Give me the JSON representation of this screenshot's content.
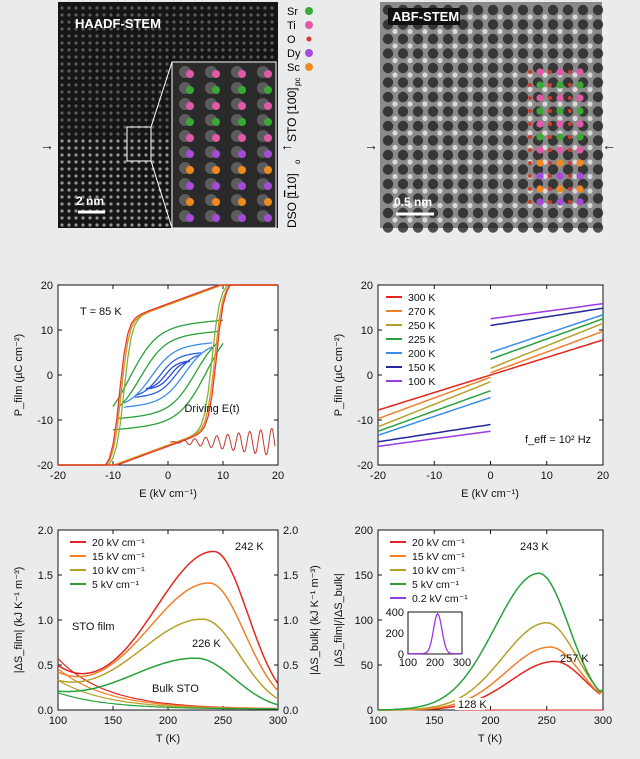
{
  "micrographs": {
    "left": {
      "title": "HAADF-STEM",
      "scalebar": "2 nm",
      "label_top": "STO [100]",
      "label_top_sub": "pc",
      "label_bottom": "DSO [",
      "label_bottom_bar": "1",
      "label_bottom_tail": "10]",
      "label_bottom_sub": "o"
    },
    "right": {
      "title": "ABF-STEM",
      "scalebar": "0.5 nm"
    },
    "legend": [
      {
        "name": "Sr",
        "color": "#3aaa35"
      },
      {
        "name": "Ti",
        "color": "#e05aa8"
      },
      {
        "name": "O",
        "color": "#d23b2b"
      },
      {
        "name": "Dy",
        "color": "#a64bd8"
      },
      {
        "name": "Sc",
        "color": "#f08a1e"
      }
    ]
  },
  "chart_data": [
    {
      "type": "line",
      "id": "hysteresis-85K",
      "xlabel": "E (kV cm⁻¹)",
      "ylabel": "P_film (µC cm⁻²)",
      "xlim": [
        -20,
        20
      ],
      "ylim": [
        -20,
        20
      ],
      "xticks": [
        "-20",
        "-10",
        "0",
        "10",
        "20"
      ],
      "yticks": [
        "-20",
        "-10",
        "0",
        "10",
        "20"
      ],
      "annotations": [
        "T = 85 K",
        "Driving E(t)"
      ],
      "loops": [
        {
          "emax": 4,
          "coercive": 0.5,
          "pmax": 3.5,
          "color": "#2b4ad6"
        },
        {
          "emax": 6,
          "coercive": 1.5,
          "pmax": 5.5,
          "color": "#2b5fe0"
        },
        {
          "emax": 8,
          "coercive": 3.0,
          "pmax": 8.0,
          "color": "#3a8ee8"
        },
        {
          "emax": 9,
          "coercive": 5.0,
          "pmax": 11,
          "color": "#2aa13a"
        },
        {
          "emax": 10,
          "coercive": 7.0,
          "pmax": 14,
          "color": "#2aa13a"
        },
        {
          "emax": 20,
          "coercive": 8.0,
          "pmax": 19.5,
          "color": "#7fb23a"
        },
        {
          "emax": 20,
          "coercive": 8.5,
          "pmax": 19.5,
          "color": "#e09020"
        },
        {
          "emax": 20,
          "coercive": 8.8,
          "pmax": 19.8,
          "color": "#e33b2b"
        }
      ]
    },
    {
      "type": "line",
      "id": "polarization-temperature",
      "xlabel": "E (kV cm⁻¹)",
      "ylabel": "P_film (µC cm⁻²)",
      "xlim": [
        -20,
        20
      ],
      "ylim": [
        -20,
        20
      ],
      "xticks": [
        "-20",
        "-10",
        "0",
        "10",
        "20"
      ],
      "yticks": [
        "-20",
        "-10",
        "0",
        "10",
        "20"
      ],
      "annotation": "f_eff = 10² Hz",
      "series": [
        {
          "name": "300 K",
          "color": "#e3261f",
          "p0": 0.0,
          "slope": 0.39
        },
        {
          "name": "270 K",
          "color": "#f0802a",
          "p0": 0.5,
          "slope": 0.46
        },
        {
          "name": "250 K",
          "color": "#b5a12a",
          "p0": 1.5,
          "slope": 0.5
        },
        {
          "name": "225 K",
          "color": "#27a13a",
          "p0": 3.5,
          "slope": 0.45
        },
        {
          "name": "200 K",
          "color": "#3a8ee8",
          "p0": 5.0,
          "slope": 0.42
        },
        {
          "name": "150 K",
          "color": "#26289a",
          "p0": 11.0,
          "slope": 0.32
        },
        {
          "name": "100 K",
          "color": "#9b3ae0",
          "p0": 12.5,
          "slope": 0.28
        }
      ]
    },
    {
      "type": "line",
      "id": "entropy-change",
      "xlabel": "T (K)",
      "ylabel": "|ΔS_film| (kJ K⁻¹ m⁻³)",
      "y2label": "|ΔS_bulk| (kJ K⁻¹ m⁻³)",
      "xlim": [
        100,
        300
      ],
      "ylim": [
        0,
        2
      ],
      "xticks": [
        "100",
        "150",
        "200",
        "250",
        "300"
      ],
      "yticks": [
        "0.0",
        "0.5",
        "1.0",
        "1.5",
        "2.0"
      ],
      "annotations": [
        "242 K",
        "226 K",
        "STO film",
        "Bulk STO"
      ],
      "series": [
        {
          "name": "20 kV cm⁻¹",
          "color": "#e3261f",
          "peakT": 242,
          "peak": 1.75,
          "width": 48
        },
        {
          "name": "15 kV cm⁻¹",
          "color": "#f0802a",
          "peakT": 238,
          "peak": 1.4,
          "width": 50
        },
        {
          "name": "10 kV cm⁻¹",
          "color": "#b5a12a",
          "peakT": 232,
          "peak": 1.0,
          "width": 52
        },
        {
          "name": "5 kV cm⁻¹",
          "color": "#27a13a",
          "peakT": 226,
          "peak": 0.57,
          "width": 54
        }
      ]
    },
    {
      "type": "line",
      "id": "entropy-ratio",
      "xlabel": "T (K)",
      "ylabel": "|ΔS_film|/|ΔS_bulk|",
      "xlim": [
        100,
        300
      ],
      "ylim": [
        0,
        200
      ],
      "xticks": [
        "100",
        "150",
        "200",
        "250",
        "300"
      ],
      "yticks": [
        "0",
        "50",
        "100",
        "150",
        "200"
      ],
      "annotations": [
        "243 K",
        "257 K",
        "128 K"
      ],
      "series": [
        {
          "name": "20 kV cm⁻¹",
          "color": "#e3261f",
          "peakT": 257,
          "peak": 54
        },
        {
          "name": "15 kV cm⁻¹",
          "color": "#f0802a",
          "peakT": 253,
          "peak": 70
        },
        {
          "name": "10 kV cm⁻¹",
          "color": "#b5a12a",
          "peakT": 250,
          "peak": 97
        },
        {
          "name": "5 kV cm⁻¹",
          "color": "#27a13a",
          "peakT": 243,
          "peak": 152
        },
        {
          "name": "0.2 kV cm⁻¹",
          "color": "#9b3ae0",
          "peakT": 260,
          "peak": 0
        }
      ],
      "inset": {
        "xticks": [
          "100",
          "200",
          "300"
        ],
        "yticks": [
          "0",
          "200",
          "400"
        ],
        "peakT": 210,
        "peak": 380
      }
    }
  ]
}
